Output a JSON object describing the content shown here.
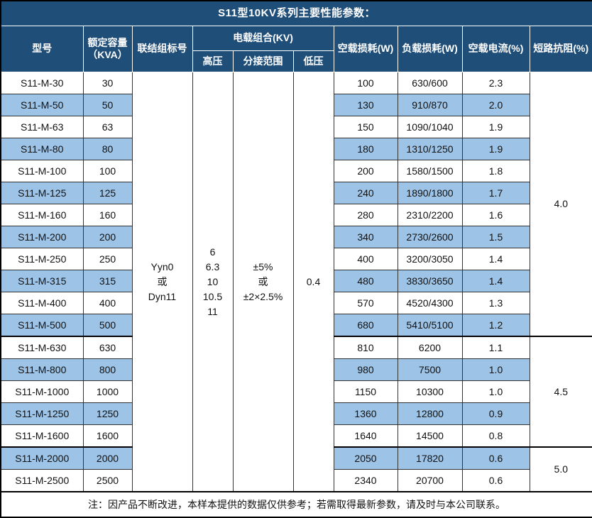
{
  "title": "S11型10KV系列主要性能参数：",
  "colors": {
    "header_bg": "#1F4E79",
    "header_text": "#FFFFFF",
    "stripe_bg": "#9DC3E6",
    "row_bg": "#FFFFFF",
    "grid_line": "#333333",
    "group_separator": "#000000"
  },
  "header": {
    "model": "型号",
    "capacity": "额定容量\n（KVA）",
    "connection": "联结组标号",
    "voltage_group": "电载组合(KV)",
    "hv": "高压",
    "tap": "分接范围",
    "lv": "低压",
    "no_load_loss": "空载损耗(W)",
    "load_loss": "负载损耗(W)",
    "no_load_current": "空载电流(%)",
    "impedance": "短路抗阻(%)"
  },
  "merged": {
    "connection": "Yyn0\n或\nDyn11",
    "hv": "6\n6.3\n10\n10.5\n11",
    "tap": "±5%\n或\n±2×2.5%",
    "lv": "0.4"
  },
  "impedance_groups": [
    {
      "value": "4.0",
      "span": 12
    },
    {
      "value": "4.5",
      "span": 5
    },
    {
      "value": "5.0",
      "span": 2
    }
  ],
  "rows": [
    [
      "S11-M-30",
      "30",
      "100",
      "630/600",
      "2.3"
    ],
    [
      "S11-M-50",
      "50",
      "130",
      "910/870",
      "2.0"
    ],
    [
      "S11-M-63",
      "63",
      "150",
      "1090/1040",
      "1.9"
    ],
    [
      "S11-M-80",
      "80",
      "180",
      "1310/1250",
      "1.9"
    ],
    [
      "S11-M-100",
      "100",
      "200",
      "1580/1500",
      "1.8"
    ],
    [
      "S11-M-125",
      "125",
      "240",
      "1890/1800",
      "1.7"
    ],
    [
      "S11-M-160",
      "160",
      "280",
      "2310/2200",
      "1.6"
    ],
    [
      "S11-M-200",
      "200",
      "340",
      "2730/2600",
      "1.5"
    ],
    [
      "S11-M-250",
      "250",
      "400",
      "3200/3050",
      "1.4"
    ],
    [
      "S11-M-315",
      "315",
      "480",
      "3830/3650",
      "1.4"
    ],
    [
      "S11-M-400",
      "400",
      "570",
      "4520/4300",
      "1.3"
    ],
    [
      "S11-M-500",
      "500",
      "680",
      "5410/5100",
      "1.2"
    ],
    [
      "S11-M-630",
      "630",
      "810",
      "6200",
      "1.1"
    ],
    [
      "S11-M-800",
      "800",
      "980",
      "7500",
      "1.0"
    ],
    [
      "S11-M-1000",
      "1000",
      "1150",
      "10300",
      "1.0"
    ],
    [
      "S11-M-1250",
      "1250",
      "1360",
      "12800",
      "0.9"
    ],
    [
      "S11-M-1600",
      "1600",
      "1640",
      "14500",
      "0.8"
    ],
    [
      "S11-M-2000",
      "2000",
      "2050",
      "17820",
      "0.6"
    ],
    [
      "S11-M-2500",
      "2500",
      "2340",
      "20700",
      "0.6"
    ]
  ],
  "note": "注：因产品不断改进，本样本提供的数据仅供参考；若需取得最新参数，请及时与本公司联系。"
}
